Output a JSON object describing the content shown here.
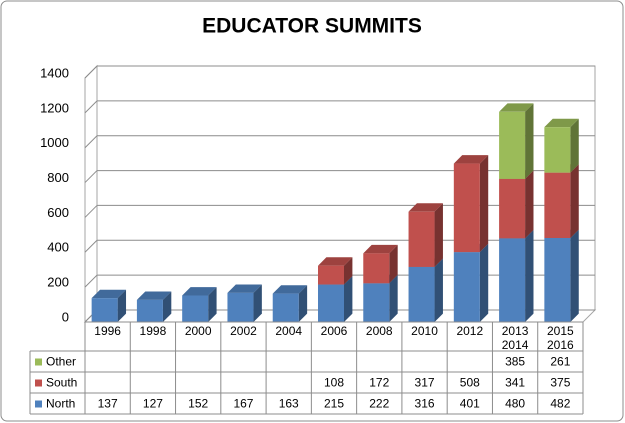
{
  "chart_data": {
    "type": "bar",
    "stacked": true,
    "title": "EDUCATOR SUMMITS",
    "categories": [
      "1996",
      "1998",
      "2000",
      "2002",
      "2004",
      "2006",
      "2008",
      "2010",
      "2012",
      "2013 2014",
      "2015 2016"
    ],
    "series": [
      {
        "name": "North",
        "color": "#4f81bd",
        "values": [
          137,
          127,
          152,
          167,
          163,
          215,
          222,
          316,
          401,
          480,
          482
        ]
      },
      {
        "name": "South",
        "color": "#c0504d",
        "values": [
          null,
          null,
          null,
          null,
          null,
          108,
          172,
          317,
          508,
          341,
          375
        ]
      },
      {
        "name": "Other",
        "color": "#9bbb59",
        "values": [
          null,
          null,
          null,
          null,
          null,
          null,
          null,
          null,
          null,
          385,
          261
        ]
      }
    ],
    "ylim": [
      0,
      1400
    ],
    "yticks": [
      0,
      200,
      400,
      600,
      800,
      1000,
      1200,
      1400
    ],
    "grid": true,
    "data_table": true
  }
}
